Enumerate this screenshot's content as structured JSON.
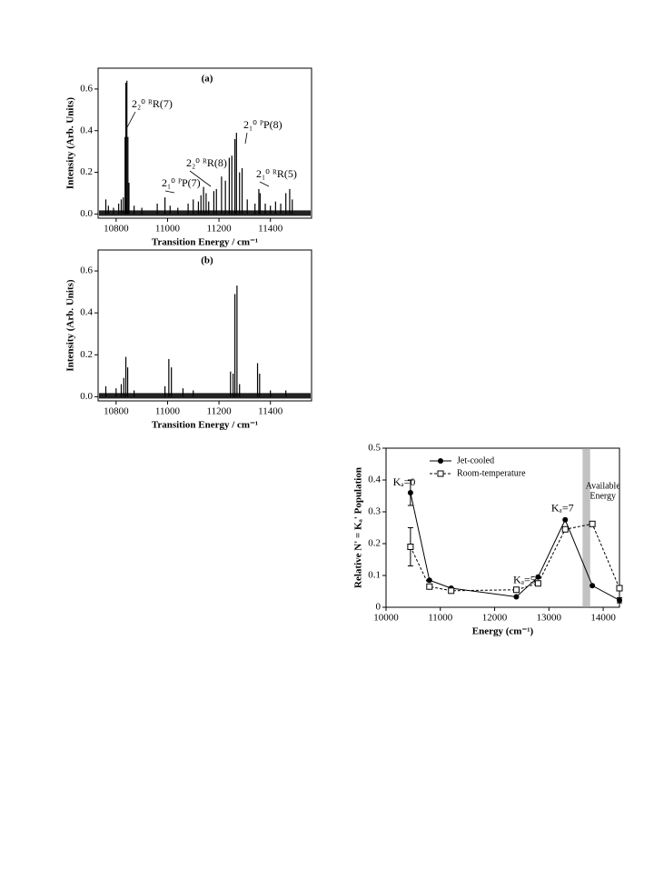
{
  "chart_data": [
    {
      "type": "spectrum",
      "panel_label": "(a)",
      "x_label": "Transition Energy / cm⁻¹",
      "y_label": "Intensity (Arb. Units)",
      "color": "#000000",
      "xlim": [
        10730,
        11560
      ],
      "ylim": [
        -0.02,
        0.7
      ],
      "xticks": [
        10800,
        11000,
        11200,
        11400
      ],
      "yticks": [
        {
          "value": 0,
          "label": "0.0"
        },
        {
          "value": 0.2,
          "label": "0.2"
        },
        {
          "value": 0.4,
          "label": "0.4"
        },
        {
          "value": 0.6,
          "label": "0.6"
        }
      ],
      "x": [
        10760,
        10770,
        10790,
        10810,
        10820,
        10828,
        10835,
        10838,
        10842,
        10846,
        10850,
        10870,
        10900,
        10960,
        10990,
        11010,
        11040,
        11080,
        11100,
        11120,
        11130,
        11140,
        11150,
        11160,
        11180,
        11190,
        11210,
        11225,
        11240,
        11250,
        11262,
        11268,
        11280,
        11290,
        11310,
        11340,
        11355,
        11360,
        11380,
        11400,
        11420,
        11440,
        11460,
        11475,
        11485
      ],
      "values": [
        0.07,
        0.04,
        0.03,
        0.05,
        0.07,
        0.08,
        0.37,
        0.63,
        0.64,
        0.37,
        0.15,
        0.04,
        0.03,
        0.05,
        0.08,
        0.04,
        0.03,
        0.05,
        0.07,
        0.06,
        0.09,
        0.13,
        0.1,
        0.06,
        0.11,
        0.12,
        0.18,
        0.16,
        0.27,
        0.28,
        0.36,
        0.39,
        0.2,
        0.22,
        0.07,
        0.05,
        0.12,
        0.1,
        0.05,
        0.04,
        0.06,
        0.05,
        0.1,
        0.12,
        0.07
      ],
      "annotations": [
        "2₂⁰ ᴿR(7)",
        "2₁⁰ ᴾP(7)",
        "2₂⁰ ᴿR(8)",
        "2₁⁰ ᴾP(8)",
        "2₁⁰ ᴿR(5)"
      ]
    },
    {
      "type": "spectrum",
      "panel_label": "(b)",
      "x_label": "Transition Energy / cm⁻¹",
      "y_label": "Intensity (Arb. Units)",
      "color": "#000000",
      "xlim": [
        10730,
        11560
      ],
      "ylim": [
        -0.02,
        0.7
      ],
      "xticks": [
        10800,
        11000,
        11200,
        11400
      ],
      "yticks": [
        {
          "value": 0,
          "label": "0.0"
        },
        {
          "value": 0.2,
          "label": "0.2"
        },
        {
          "value": 0.4,
          "label": "0.4"
        },
        {
          "value": 0.6,
          "label": "0.6"
        }
      ],
      "x": [
        10760,
        10800,
        10820,
        10830,
        10838,
        10845,
        10870,
        10990,
        11005,
        11015,
        11060,
        11100,
        11245,
        11255,
        11262,
        11270,
        11280,
        11350,
        11358,
        11400,
        11460
      ],
      "values": [
        0.05,
        0.04,
        0.06,
        0.09,
        0.19,
        0.14,
        0.03,
        0.05,
        0.18,
        0.14,
        0.04,
        0.03,
        0.12,
        0.11,
        0.49,
        0.53,
        0.06,
        0.16,
        0.11,
        0.03,
        0.03
      ]
    },
    {
      "type": "line",
      "x_label": "Energy (cm⁻¹)",
      "y_label": "Relative N' = Kₐ' Population",
      "xlim": [
        10000,
        14300
      ],
      "ylim": [
        0,
        0.5
      ],
      "xticks": [
        10000,
        11000,
        12000,
        13000,
        14000
      ],
      "yticks": [
        0,
        0.1,
        0.2,
        0.3,
        0.4,
        0.5
      ],
      "legend": "upper center",
      "x": [
        10450,
        10800,
        11200,
        12400,
        12800,
        13300,
        13800,
        14300
      ],
      "series": [
        {
          "name": "Jet-cooled",
          "color": "#000000",
          "marker": "filled-circle",
          "dash": false,
          "values": [
            0.36,
            0.085,
            0.06,
            0.033,
            0.095,
            0.275,
            0.068,
            0.022
          ],
          "errors": [
            0.04,
            null,
            null,
            null,
            null,
            null,
            null,
            0.008
          ]
        },
        {
          "name": "Room-temperature",
          "color": "#000000",
          "marker": "open-square",
          "dash": true,
          "values": [
            0.19,
            0.065,
            0.052,
            0.055,
            0.075,
            0.245,
            0.262,
            0.06
          ],
          "errors": [
            0.06,
            null,
            null,
            null,
            null,
            null,
            null,
            null
          ]
        }
      ],
      "shaded_region": [
        13620,
        13760
      ],
      "shaded_label": [
        "Available",
        "Energy"
      ],
      "annotations": [
        "Kₐ=0",
        "Kₐ=5",
        "Kₐ=7"
      ]
    }
  ]
}
